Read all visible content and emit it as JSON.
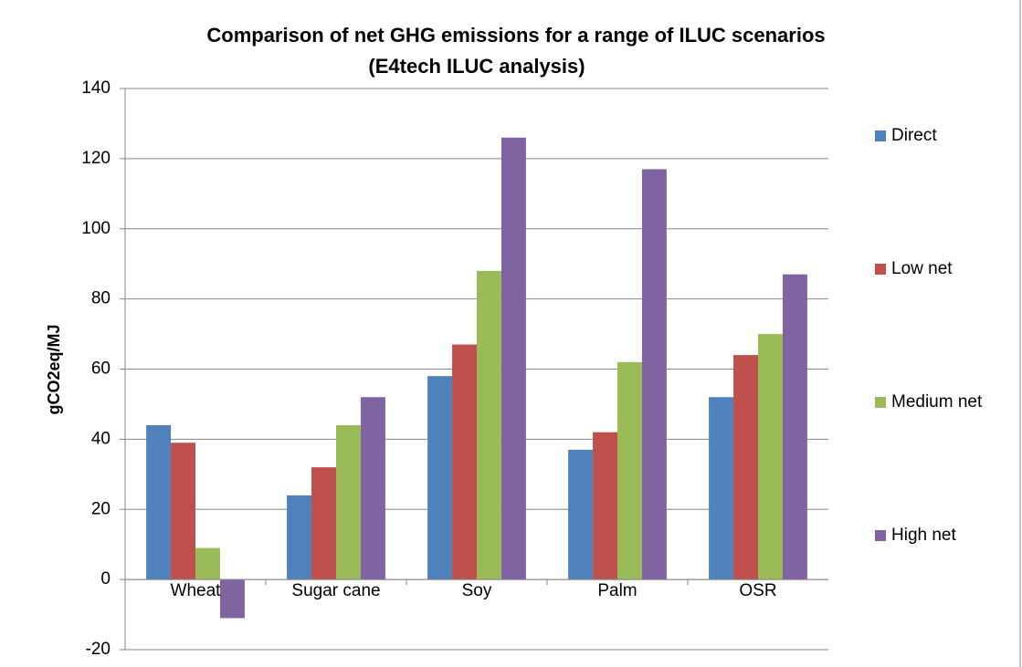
{
  "chart_data": {
    "type": "bar",
    "title": "Comparison of net GHG emissions for a range of ILUC scenarios",
    "subtitle": "(E4tech ILUC analysis)",
    "y_label": "gCO2eq/MJ",
    "categories": [
      "Wheat",
      "Sugar cane",
      "Soy",
      "Palm",
      "OSR"
    ],
    "series": [
      {
        "name": "Direct",
        "color": "#4f81bd",
        "values": [
          44,
          24,
          58,
          37,
          52
        ]
      },
      {
        "name": "Low net",
        "color": "#c0504d",
        "values": [
          39,
          32,
          67,
          42,
          64
        ]
      },
      {
        "name": "Medium net",
        "color": "#9bbb59",
        "values": [
          9,
          44,
          88,
          62,
          70
        ]
      },
      {
        "name": "High net",
        "color": "#8064a2",
        "values": [
          -11,
          52,
          126,
          117,
          87
        ]
      }
    ],
    "ylim": [
      -20,
      140
    ],
    "yticks": [
      -20,
      0,
      20,
      40,
      60,
      80,
      100,
      120,
      140
    ],
    "grid": true,
    "legend": "right"
  }
}
